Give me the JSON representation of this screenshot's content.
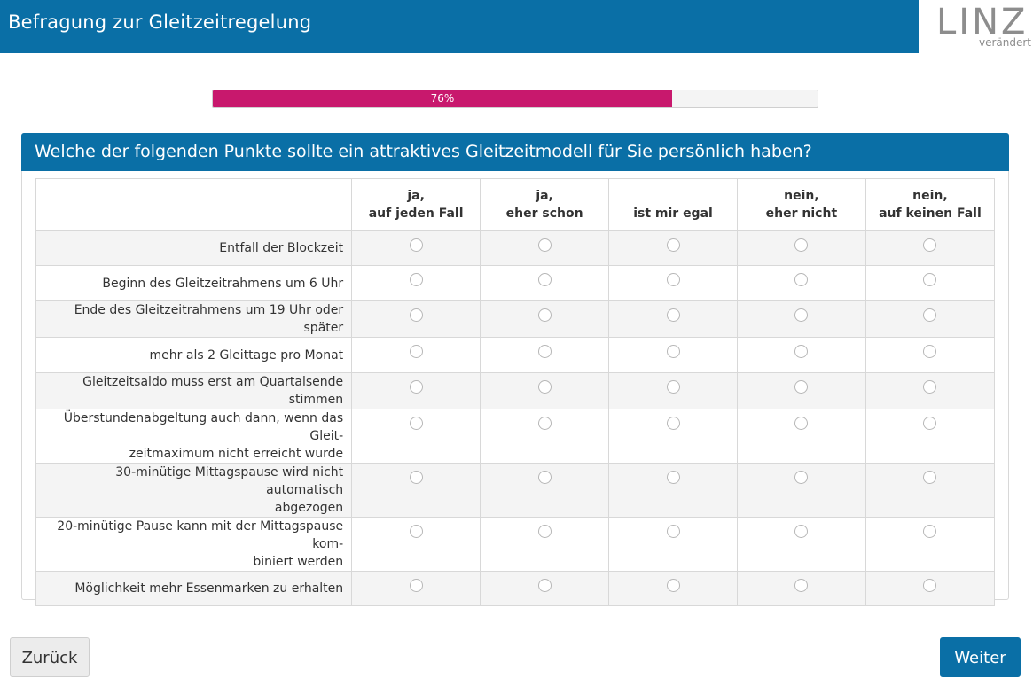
{
  "header": {
    "title": "Befragung zur Gleitzeitregelung",
    "logo_word": "LINZ",
    "logo_tagline": "verändert"
  },
  "progress": {
    "label": "76%",
    "value": 0.76
  },
  "question": {
    "text": "Welche der folgenden Punkte sollte ein attraktives Gleitzeitmodell für Sie persönlich haben?",
    "columns": [
      {
        "line1": "ja,",
        "line2": "auf jeden Fall"
      },
      {
        "line1": "ja,",
        "line2": "eher schon"
      },
      {
        "line1": "",
        "line2": "ist mir egal"
      },
      {
        "line1": "nein,",
        "line2": "eher nicht"
      },
      {
        "line1": "nein,",
        "line2": "auf keinen Fall"
      }
    ],
    "rows": [
      {
        "line1": "Entfall der Blockzeit",
        "line2": ""
      },
      {
        "line1": "Beginn des Gleitzeitrahmens um 6 Uhr",
        "line2": ""
      },
      {
        "line1": "Ende des Gleitzeitrahmens um 19 Uhr oder später",
        "line2": ""
      },
      {
        "line1": "mehr als 2 Gleittage pro Monat",
        "line2": ""
      },
      {
        "line1": "Gleitzeitsaldo muss erst am Quartalsende stimmen",
        "line2": ""
      },
      {
        "line1": "Überstundenabgeltung auch dann, wenn das Gleit-",
        "line2": "zeitmaximum nicht erreicht wurde"
      },
      {
        "line1": "30-minütige Mittagspause wird nicht automatisch",
        "line2": "abgezogen"
      },
      {
        "line1": "20-minütige Pause kann mit der Mittagspause kom-",
        "line2": "biniert werden"
      },
      {
        "line1": "Möglichkeit mehr Essenmarken zu erhalten",
        "line2": ""
      }
    ]
  },
  "nav": {
    "back_label": "Zurück",
    "next_label": "Weiter"
  },
  "colors": {
    "brand_blue": "#0a6fa6",
    "progress_pink": "#c8186d"
  }
}
